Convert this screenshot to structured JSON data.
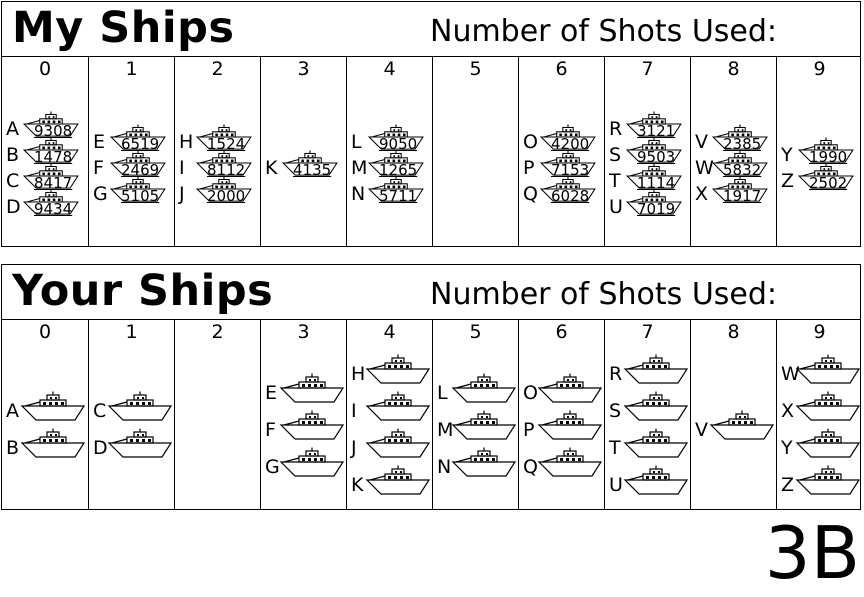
{
  "panels": {
    "mine": {
      "title": "My Ships",
      "shots_label": "Number of Shots Used:",
      "columns": [
        {
          "num": "0",
          "ships": [
            {
              "letter": "A",
              "code": "9308"
            },
            {
              "letter": "B",
              "code": "1478"
            },
            {
              "letter": "C",
              "code": "8417"
            },
            {
              "letter": "D",
              "code": "9434"
            }
          ]
        },
        {
          "num": "1",
          "ships": [
            {
              "letter": "E",
              "code": "6519"
            },
            {
              "letter": "F",
              "code": "2469"
            },
            {
              "letter": "G",
              "code": "5105"
            }
          ]
        },
        {
          "num": "2",
          "ships": [
            {
              "letter": "H",
              "code": "1524"
            },
            {
              "letter": "I",
              "code": "8112"
            },
            {
              "letter": "J",
              "code": "2000"
            }
          ]
        },
        {
          "num": "3",
          "ships": [
            {
              "letter": "K",
              "code": "4135"
            }
          ]
        },
        {
          "num": "4",
          "ships": [
            {
              "letter": "L",
              "code": "9050"
            },
            {
              "letter": "M",
              "code": "1265"
            },
            {
              "letter": "N",
              "code": "5711"
            }
          ]
        },
        {
          "num": "5",
          "ships": []
        },
        {
          "num": "6",
          "ships": [
            {
              "letter": "O",
              "code": "4200"
            },
            {
              "letter": "P",
              "code": "7153"
            },
            {
              "letter": "Q",
              "code": "6028"
            }
          ]
        },
        {
          "num": "7",
          "ships": [
            {
              "letter": "R",
              "code": "3121"
            },
            {
              "letter": "S",
              "code": "9503"
            },
            {
              "letter": "T",
              "code": "1114"
            },
            {
              "letter": "U",
              "code": "7019"
            }
          ]
        },
        {
          "num": "8",
          "ships": [
            {
              "letter": "V",
              "code": "2385"
            },
            {
              "letter": "W",
              "code": "5832"
            },
            {
              "letter": "X",
              "code": "1917"
            }
          ]
        },
        {
          "num": "9",
          "ships": [
            {
              "letter": "Y",
              "code": "1990"
            },
            {
              "letter": "Z",
              "code": "2502"
            }
          ]
        }
      ]
    },
    "yours": {
      "title": "Your Ships",
      "shots_label": "Number of Shots Used:",
      "columns": [
        {
          "num": "0",
          "ships": [
            {
              "letter": "A"
            },
            {
              "letter": "B"
            }
          ]
        },
        {
          "num": "1",
          "ships": [
            {
              "letter": "C"
            },
            {
              "letter": "D"
            }
          ]
        },
        {
          "num": "2",
          "ships": []
        },
        {
          "num": "3",
          "ships": [
            {
              "letter": "E"
            },
            {
              "letter": "F"
            },
            {
              "letter": "G"
            }
          ]
        },
        {
          "num": "4",
          "ships": [
            {
              "letter": "H"
            },
            {
              "letter": "I"
            },
            {
              "letter": "J"
            },
            {
              "letter": "K"
            }
          ]
        },
        {
          "num": "5",
          "ships": [
            {
              "letter": "L"
            },
            {
              "letter": "M"
            },
            {
              "letter": "N"
            }
          ]
        },
        {
          "num": "6",
          "ships": [
            {
              "letter": "O"
            },
            {
              "letter": "P"
            },
            {
              "letter": "Q"
            }
          ]
        },
        {
          "num": "7",
          "ships": [
            {
              "letter": "R"
            },
            {
              "letter": "S"
            },
            {
              "letter": "T"
            },
            {
              "letter": "U"
            }
          ]
        },
        {
          "num": "8",
          "ships": [
            {
              "letter": "V"
            }
          ]
        },
        {
          "num": "9",
          "ships": [
            {
              "letter": "W"
            },
            {
              "letter": "X"
            },
            {
              "letter": "Y"
            },
            {
              "letter": "Z"
            }
          ]
        }
      ]
    }
  },
  "sheet_code": "3B"
}
